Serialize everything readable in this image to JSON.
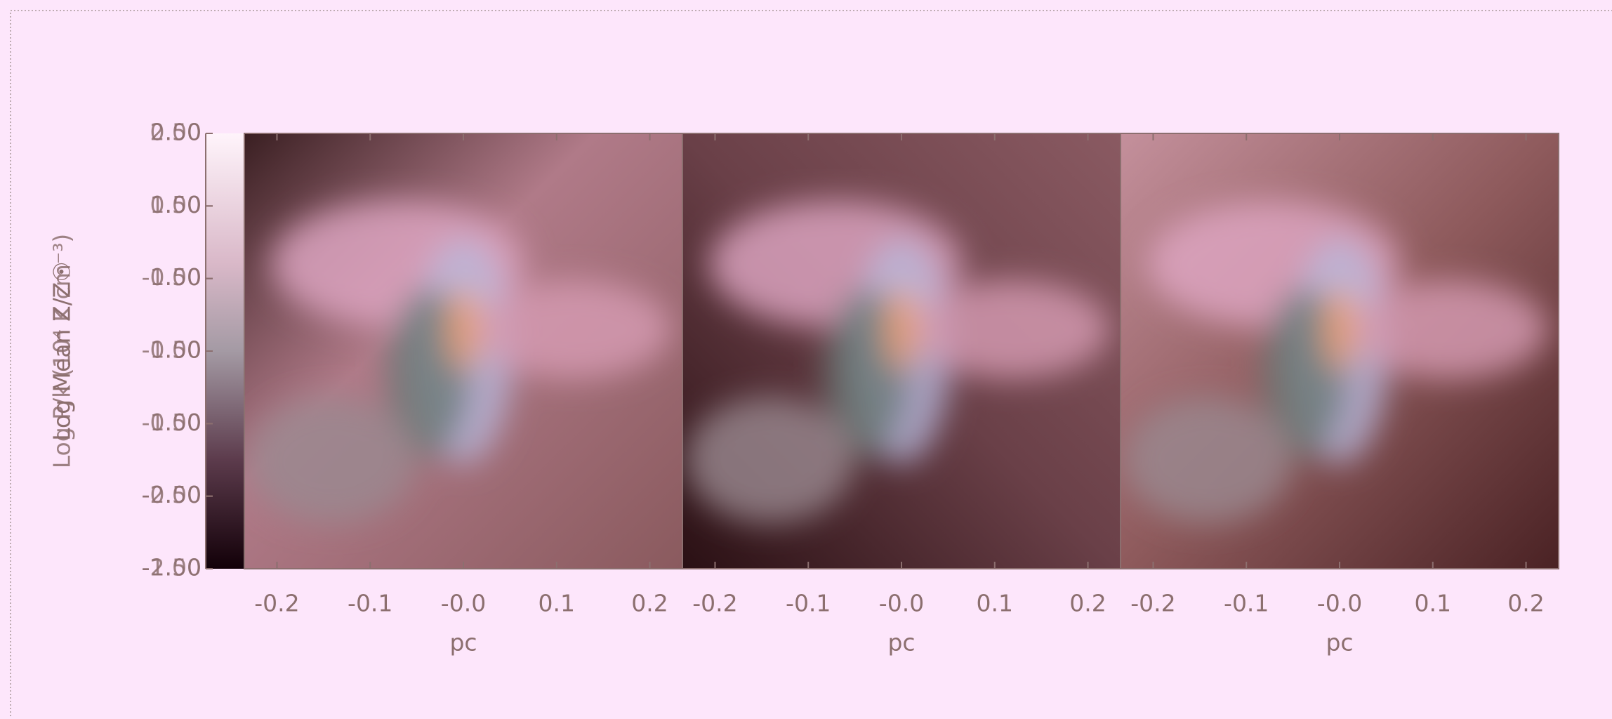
{
  "chart_data": [
    {
      "type": "colorbar",
      "ylabel": "Log Mean Z/Z☉",
      "y2label": "Log P/k (10⁴ K cm⁻³)",
      "ylim": [
        -1,
        2
      ],
      "yticks": [
        {
          "value": 2,
          "label": "2.00"
        },
        {
          "value": 1.5,
          "label": "1.50"
        },
        {
          "value": 1,
          "label": "1.00"
        },
        {
          "value": 0.5,
          "label": "0.50"
        },
        {
          "value": 0,
          "label": "0.00"
        },
        {
          "value": -0.5,
          "label": "-0.50"
        },
        {
          "value": -1,
          "label": "-1.00"
        }
      ],
      "y2lim": [
        -2.5,
        0.5
      ],
      "y2ticks": [
        {
          "value": 0.5,
          "label": "0.50"
        },
        {
          "value": 0,
          "label": "0.00"
        },
        {
          "value": -0.5,
          "label": "-0.50"
        },
        {
          "value": -1,
          "label": "-1.00"
        },
        {
          "value": -1.5,
          "label": "-1.50"
        },
        {
          "value": -2,
          "label": "-2.00"
        },
        {
          "value": -2.5,
          "label": "-2.50"
        }
      ]
    },
    {
      "type": "image",
      "xlabel": "pc",
      "xlim": [
        -0.235,
        0.235
      ],
      "xticks": [
        -0.2,
        -0.1,
        {
          "value": 0,
          "label": "-0.0"
        },
        0.1,
        0.2
      ]
    },
    {
      "type": "image",
      "xlabel": "pc",
      "xlim": [
        -0.235,
        0.235
      ],
      "xticks": [
        -0.2,
        -0.1,
        {
          "value": 0,
          "label": "-0.0"
        },
        0.1,
        0.2
      ]
    },
    {
      "type": "image",
      "xlabel": "pc",
      "xlim": [
        -0.235,
        0.235
      ],
      "xticks": [
        -0.2,
        -0.1,
        {
          "value": 0,
          "label": "-0.0"
        },
        0.1,
        0.2
      ]
    }
  ]
}
